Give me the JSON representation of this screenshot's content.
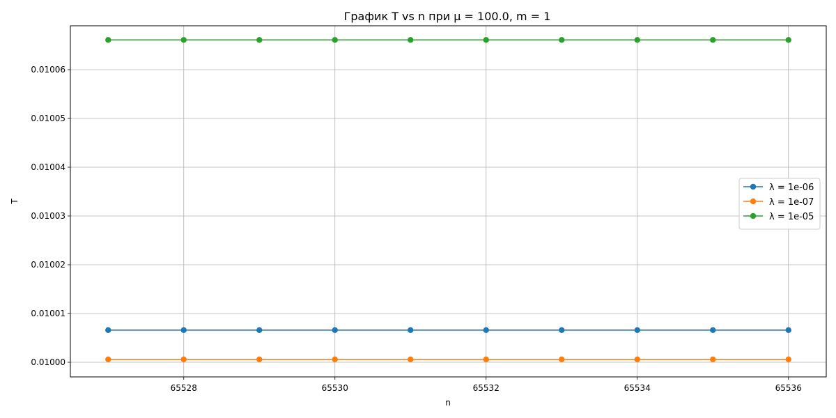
{
  "chart_data": {
    "type": "line",
    "title": "График T vs n при μ = 100.0, m = 1",
    "xlabel": "n",
    "ylabel": "T",
    "x": [
      65527,
      65528,
      65529,
      65530,
      65531,
      65532,
      65533,
      65534,
      65535,
      65536
    ],
    "xlim": [
      65526.5,
      65536.5
    ],
    "ylim": [
      0.009997,
      0.010069
    ],
    "xticks": [
      65528,
      65530,
      65532,
      65534,
      65536
    ],
    "xtick_labels": [
      "65528",
      "65530",
      "65532",
      "65534",
      "65536"
    ],
    "yticks": [
      0.01,
      0.01001,
      0.01002,
      0.01003,
      0.01004,
      0.01005,
      0.01006
    ],
    "ytick_labels": [
      "0.01000",
      "0.01001",
      "0.01002",
      "0.01003",
      "0.01004",
      "0.01005",
      "0.01006"
    ],
    "grid": true,
    "legend_position": "center-right",
    "series": [
      {
        "name": "λ = 1e-06",
        "color": "#1f77b4",
        "values": [
          0.0100066,
          0.0100066,
          0.0100066,
          0.0100066,
          0.0100066,
          0.0100066,
          0.0100066,
          0.0100066,
          0.0100066,
          0.0100066
        ]
      },
      {
        "name": "λ = 1e-07",
        "color": "#ff7f0e",
        "values": [
          0.0100006,
          0.0100006,
          0.0100006,
          0.0100006,
          0.0100006,
          0.0100006,
          0.0100006,
          0.0100006,
          0.0100006,
          0.0100006
        ]
      },
      {
        "name": "λ = 1e-05",
        "color": "#2ca02c",
        "values": [
          0.0100661,
          0.0100661,
          0.0100661,
          0.0100661,
          0.0100661,
          0.0100661,
          0.0100661,
          0.0100661,
          0.0100661,
          0.0100661
        ]
      }
    ]
  }
}
